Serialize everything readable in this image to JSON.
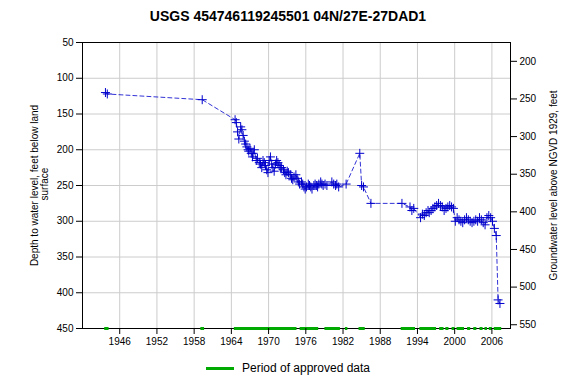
{
  "chart_data": {
    "type": "line",
    "title": "USGS 454746119245501 04N/27E-27DAD1",
    "ylabel": "Depth to water level, feet below land\n surface",
    "y2label": "Groundwater level above NGVD 1929, feet",
    "xlim": [
      1940,
      2009
    ],
    "xticks": [
      1946,
      1952,
      1958,
      1964,
      1970,
      1976,
      1982,
      1988,
      1994,
      2000,
      2006
    ],
    "ylim": [
      450,
      50
    ],
    "yticks": [
      50,
      100,
      150,
      200,
      250,
      300,
      350,
      400,
      450
    ],
    "y2lim": [
      555,
      175
    ],
    "y2ticks": [
      550,
      500,
      450,
      400,
      350,
      300,
      250,
      200
    ],
    "grid": true,
    "legend": "bottom",
    "x": [
      1943.7,
      1944.0,
      1959.3,
      1964.6,
      1964.8,
      1965.0,
      1965.2,
      1965.5,
      1965.7,
      1965.9,
      1966.1,
      1966.3,
      1966.5,
      1966.7,
      1966.8,
      1967.0,
      1967.2,
      1967.4,
      1967.5,
      1967.7,
      1968.0,
      1968.2,
      1968.5,
      1968.7,
      1968.9,
      1969.1,
      1969.3,
      1969.5,
      1969.7,
      1969.9,
      1970.1,
      1970.3,
      1970.5,
      1970.7,
      1970.9,
      1971.1,
      1971.3,
      1971.5,
      1971.7,
      1971.9,
      1972.1,
      1972.4,
      1972.6,
      1972.8,
      1973.0,
      1973.2,
      1973.5,
      1973.7,
      1973.9,
      1974.1,
      1974.4,
      1974.6,
      1974.8,
      1975.0,
      1975.3,
      1975.5,
      1975.7,
      1975.9,
      1976.1,
      1976.4,
      1976.6,
      1976.8,
      1977.0,
      1977.3,
      1977.5,
      1977.7,
      1977.9,
      1978.1,
      1978.4,
      1978.6,
      1978.8,
      1979.1,
      1979.4,
      1980.2,
      1980.5,
      1980.8,
      1981.0,
      1981.3,
      1982.5,
      1984.7,
      1985.0,
      1985.3,
      1986.5,
      1991.5,
      1992.8,
      1993.1,
      1993.4,
      1994.5,
      1994.8,
      1995.1,
      1995.4,
      1995.7,
      1995.9,
      1996.2,
      1996.5,
      1996.8,
      1997.1,
      1997.4,
      1997.7,
      1998.0,
      1998.3,
      1998.6,
      1998.9,
      1999.2,
      1999.5,
      1999.8,
      2000.1,
      2000.4,
      2000.7,
      2001.0,
      2001.3,
      2001.6,
      2001.9,
      2002.2,
      2002.5,
      2002.8,
      2003.1,
      2003.4,
      2003.7,
      2004.0,
      2004.3,
      2004.6,
      2004.9,
      2005.2,
      2005.5,
      2005.8,
      2006.1,
      2006.4,
      2006.7,
      2007.0,
      2007.3
    ],
    "series": [
      {
        "color": "#0000cc",
        "line_style": "dashed",
        "marker": "plus",
        "values": [
          120,
          122,
          130,
          158,
          162,
          175,
          185,
          168,
          172,
          180,
          188,
          192,
          196,
          200,
          202,
          198,
          205,
          210,
          205,
          200,
          215,
          212,
          218,
          220,
          225,
          215,
          218,
          222,
          228,
          232,
          215,
          210,
          220,
          225,
          230,
          220,
          215,
          218,
          222,
          225,
          225,
          228,
          232,
          235,
          230,
          232,
          235,
          240,
          242,
          238,
          235,
          240,
          245,
          248,
          245,
          248,
          252,
          255,
          252,
          248,
          250,
          252,
          255,
          250,
          248,
          250,
          252,
          248,
          245,
          248,
          250,
          248,
          250,
          245,
          248,
          250,
          248,
          252,
          248,
          205,
          250,
          252,
          275,
          275,
          280,
          285,
          282,
          295,
          290,
          292,
          288,
          285,
          288,
          285,
          282,
          280,
          278,
          275,
          278,
          280,
          285,
          282,
          280,
          278,
          280,
          282,
          300,
          295,
          298,
          300,
          302,
          298,
          295,
          298,
          300,
          302,
          300,
          298,
          300,
          295,
          298,
          302,
          305,
          295,
          292,
          295,
          300,
          310,
          320,
          410,
          415
        ]
      }
    ],
    "approved_segments": {
      "name": "Period of approved data",
      "color": "#00aa00",
      "y": 450,
      "x": [
        [
          1943.5,
          1944.2
        ],
        [
          1959.0,
          1959.6
        ],
        [
          1964.4,
          1974.5
        ],
        [
          1975.0,
          1978.0
        ],
        [
          1979.0,
          1981.5
        ],
        [
          1982.3,
          1982.7
        ],
        [
          1984.5,
          1985.5
        ],
        [
          1991.3,
          1993.6
        ],
        [
          1994.3,
          1997.0
        ],
        [
          1997.5,
          1998.2
        ],
        [
          1998.5,
          1999.0
        ],
        [
          1999.5,
          2000.0
        ],
        [
          2000.3,
          2001.5
        ],
        [
          2002.0,
          2002.5
        ],
        [
          2003.0,
          2003.5
        ],
        [
          2004.0,
          2004.5
        ],
        [
          2004.8,
          2005.2
        ],
        [
          2005.5,
          2006.0
        ],
        [
          2006.3,
          2007.5
        ]
      ]
    }
  }
}
